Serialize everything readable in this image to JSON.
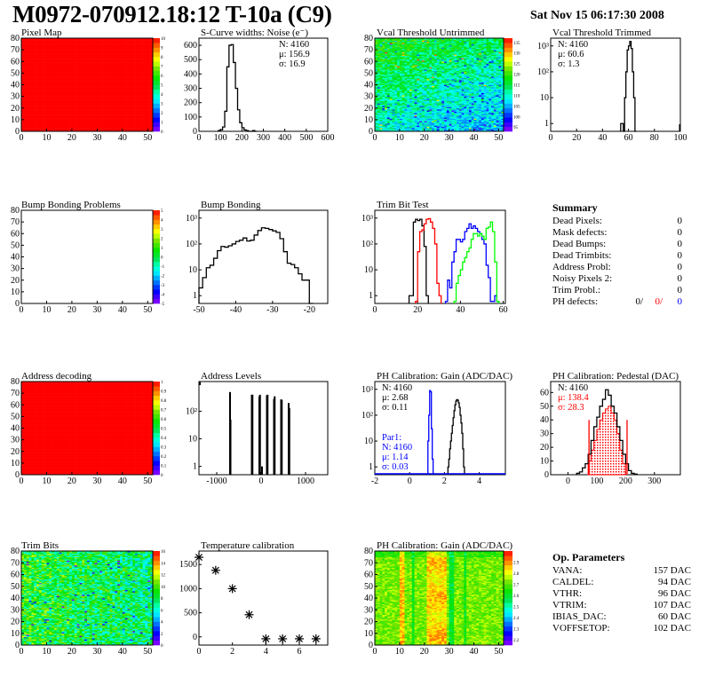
{
  "header": {
    "title": "M0972-070912.18:12 T-10a (C9)",
    "date": "Sat Nov 15 06:17:30 2008"
  },
  "summary": {
    "title": "Summary",
    "rows": [
      {
        "label": "Dead Pixels:",
        "value": "0"
      },
      {
        "label": "Mask defects:",
        "value": "0"
      },
      {
        "label": "Dead Bumps:",
        "value": "0"
      },
      {
        "label": "Dead Trimbits:",
        "value": "0"
      },
      {
        "label": "Address Probl:",
        "value": "0"
      },
      {
        "label": "Noisy Pixels 2:",
        "value": "0"
      },
      {
        "label": "Trim Probl.:",
        "value": "0"
      }
    ],
    "ph_defects": {
      "label": "PH defects:",
      "values": [
        {
          "text": "0/",
          "color": "#000000"
        },
        {
          "text": "0/",
          "color": "#ff0000"
        },
        {
          "text": "0",
          "color": "#0000ff"
        }
      ]
    }
  },
  "op_parameters": {
    "title": "Op. Parameters",
    "rows": [
      {
        "label": "VANA:",
        "value": "157 DAC"
      },
      {
        "label": "CALDEL:",
        "value": "94 DAC"
      },
      {
        "label": "VTHR:",
        "value": "96 DAC"
      },
      {
        "label": "VTRIM:",
        "value": "107 DAC"
      },
      {
        "label": "IBIAS_DAC:",
        "value": "60 DAC"
      },
      {
        "label": "VOFFSETOP:",
        "value": "102 DAC"
      }
    ]
  },
  "chart_data": [
    {
      "id": "pixel_map",
      "type": "heatmap",
      "title": "Pixel Map",
      "xlim": [
        0,
        52
      ],
      "ylim": [
        0,
        80
      ],
      "zlim": [
        0,
        10
      ],
      "xticks": [
        "0",
        "10",
        "20",
        "30",
        "40",
        "50"
      ],
      "yticks": [
        "0",
        "10",
        "20",
        "30",
        "40",
        "50",
        "60",
        "70",
        "80"
      ],
      "zticks": [
        "0",
        "1",
        "2",
        "3",
        "4",
        "5",
        "6",
        "7",
        "8",
        "9",
        "10"
      ],
      "fill": "uniform",
      "uniform_value": 10
    },
    {
      "id": "scurve",
      "type": "histogram",
      "title": "S-Curve widths: Noise (e⁻)",
      "xlim": [
        0,
        600
      ],
      "ylim": [
        0,
        650
      ],
      "log": false,
      "xticks": [
        "0",
        "100",
        "200",
        "300",
        "400",
        "500",
        "600"
      ],
      "yticks": [
        "0",
        "100",
        "200",
        "300",
        "400",
        "500",
        "600"
      ],
      "bin_width": 10,
      "series": [
        {
          "x0": 90,
          "color": "#000000",
          "values": [
            5,
            10,
            30,
            140,
            450,
            600,
            605,
            480,
            300,
            150,
            60,
            25,
            10,
            5,
            0,
            0,
            5,
            0
          ]
        }
      ],
      "stats": [
        {
          "text": "N: 4160",
          "color": "#000000"
        },
        {
          "text": "μ: 156.9",
          "color": "#000000"
        },
        {
          "text": "σ: 16.9",
          "color": "#000000"
        }
      ]
    },
    {
      "id": "vcal_untrimmed",
      "type": "heatmap",
      "title": "Vcal Threshold Untrimmed",
      "xlim": [
        0,
        52
      ],
      "ylim": [
        0,
        80
      ],
      "zlim": [
        93,
        137
      ],
      "xticks": [
        "0",
        "10",
        "20",
        "30",
        "40",
        "50"
      ],
      "yticks": [
        "0",
        "10",
        "20",
        "30",
        "40",
        "50",
        "60",
        "70",
        "80"
      ],
      "zticks": [
        "95",
        "100",
        "105",
        "110",
        "115",
        "120",
        "125",
        "130",
        "135"
      ],
      "fill": "vcal"
    },
    {
      "id": "vcal_trimmed",
      "type": "histogram",
      "title": "Vcal Threshold Trimmed",
      "xlim": [
        0,
        100
      ],
      "ylim": [
        0.5,
        2000
      ],
      "log": true,
      "xticks": [
        "0",
        "20",
        "40",
        "60",
        "80",
        "100"
      ],
      "yticks": [
        "1",
        "10",
        "10²",
        "10³"
      ],
      "bin_width": 1,
      "series": [
        {
          "x0": 54,
          "color": "#000000",
          "values": [
            1,
            1,
            0,
            10,
            100,
            700,
            1000,
            1500,
            800,
            100,
            10,
            0
          ]
        }
      ],
      "stats": [
        {
          "text": "N: 4160",
          "color": "#000000"
        },
        {
          "text": "μ: 60.6",
          "color": "#000000"
        },
        {
          "text": "σ:  1.3",
          "color": "#000000"
        }
      ]
    },
    {
      "id": "bump_problems",
      "type": "heatmap",
      "title": "Bump Bonding Problems",
      "xlim": [
        0,
        52
      ],
      "ylim": [
        0,
        80
      ],
      "zlim": [
        -5,
        5
      ],
      "xticks": [
        "0",
        "10",
        "20",
        "30",
        "40",
        "50"
      ],
      "yticks": [
        "0",
        "10",
        "20",
        "30",
        "40",
        "50",
        "60",
        "70",
        "80"
      ],
      "zticks": [
        "-5",
        "-4",
        "-3",
        "-2",
        "-1",
        "0",
        "1",
        "2",
        "3",
        "4",
        "5"
      ],
      "fill": "empty"
    },
    {
      "id": "bump_bonding",
      "type": "histogram",
      "title": "Bump Bonding",
      "xlim": [
        -50,
        -15
      ],
      "ylim": [
        0.5,
        2000
      ],
      "log": true,
      "xticks": [
        "-50",
        "-40",
        "-30",
        "-20"
      ],
      "yticks": [
        "1",
        "10",
        "10²",
        "10³"
      ],
      "bin_width": 1,
      "series": [
        {
          "x0": -50,
          "color": "#000000",
          "values": [
            2,
            5,
            12,
            15,
            28,
            55,
            80,
            75,
            85,
            100,
            125,
            140,
            170,
            130,
            140,
            220,
            330,
            420,
            400,
            360,
            320,
            280,
            160,
            50,
            18,
            16,
            12,
            7,
            4,
            4,
            0.5
          ]
        }
      ],
      "stats": []
    },
    {
      "id": "trim_bit_test",
      "type": "histogram",
      "title": "Trim Bit Test",
      "xlim": [
        0,
        61
      ],
      "ylim": [
        0.5,
        2000
      ],
      "log": true,
      "xticks": [
        "0",
        "20",
        "40",
        "60"
      ],
      "yticks": [
        "1",
        "10",
        "10²",
        "10³"
      ],
      "bin_width": 1,
      "series": [
        {
          "x0": 16,
          "color": "#000000",
          "values": [
            1,
            1,
            700,
            900,
            800,
            900,
            500,
            80,
            1
          ]
        },
        {
          "x0": 19,
          "color": "#ff0000",
          "values": [
            0.6,
            50,
            300,
            350,
            600,
            900,
            950,
            700,
            400,
            100,
            3,
            1
          ]
        },
        {
          "x0": 33,
          "color": "#0000ff",
          "values": [
            0.6,
            4,
            2,
            20,
            50,
            150,
            150,
            120,
            150,
            300,
            400,
            600,
            400,
            500,
            400,
            300,
            250,
            150,
            100,
            15,
            5,
            0.6,
            0.6,
            1,
            0.6
          ]
        },
        {
          "x0": 37,
          "color": "#00ff00",
          "values": [
            0.6,
            3,
            6,
            10,
            20,
            30,
            50,
            70,
            150,
            250,
            250,
            200,
            250,
            200,
            150,
            400,
            450,
            700,
            300,
            20,
            0.6
          ]
        }
      ],
      "stats": []
    },
    {
      "id": "summary",
      "type": "text"
    },
    {
      "id": "address_decoding",
      "type": "heatmap",
      "title": "Address decoding",
      "xlim": [
        0,
        52
      ],
      "ylim": [
        0,
        80
      ],
      "zlim": [
        0,
        1
      ],
      "xticks": [
        "0",
        "10",
        "20",
        "30",
        "40",
        "50"
      ],
      "yticks": [
        "0",
        "10",
        "20",
        "30",
        "40",
        "50",
        "60",
        "70",
        "80"
      ],
      "zticks": [
        "0",
        "0.1",
        "0.2",
        "0.3",
        "0.4",
        "0.5",
        "0.6",
        "0.7",
        "0.8",
        "0.9",
        "1"
      ],
      "fill": "uniform",
      "uniform_value": 1
    },
    {
      "id": "address_levels",
      "type": "spikes",
      "title": "Address Levels",
      "xlim": [
        -1400,
        1500
      ],
      "ylim": [
        0.5,
        1200
      ],
      "log": true,
      "xticks": [
        "-1000",
        "0",
        "1000"
      ],
      "yticks": [
        "1",
        "10",
        "10²"
      ],
      "points": [
        [
          -700,
          500
        ],
        [
          -690,
          50
        ],
        [
          -210,
          400
        ],
        [
          -195,
          400
        ],
        [
          -40,
          350
        ],
        [
          -25,
          400
        ],
        [
          20,
          1
        ],
        [
          130,
          380
        ],
        [
          145,
          400
        ],
        [
          290,
          280
        ],
        [
          305,
          350
        ],
        [
          450,
          270
        ],
        [
          465,
          260
        ],
        [
          620,
          200
        ],
        [
          635,
          130
        ]
      ],
      "stats": []
    },
    {
      "id": "ph_gain",
      "type": "histogram",
      "title": "PH Calibration: Gain (ADC/DAC)",
      "xlim": [
        -2,
        5.5
      ],
      "ylim": [
        0.5,
        2000
      ],
      "log": true,
      "xticks": [
        "-2",
        "0",
        "2",
        "4"
      ],
      "yticks": [
        "1",
        "10",
        "10²",
        "10³"
      ],
      "bin_width": 0.05,
      "series": [
        {
          "x0": 2.2,
          "color": "#000000",
          "values": [
            1,
            2,
            5,
            10,
            20,
            40,
            80,
            150,
            250,
            350,
            400,
            380,
            300,
            200,
            100,
            50,
            20,
            5,
            1
          ]
        },
        {
          "x0": 1.05,
          "color": "#0000ff",
          "values": [
            10,
            100,
            900,
            800,
            30,
            2
          ],
          "baseline": true
        }
      ],
      "stats": [
        {
          "text": "N: 4160",
          "color": "#000000"
        },
        {
          "text": "μ: 2.68",
          "color": "#000000"
        },
        {
          "text": "σ: 0.11",
          "color": "#000000"
        }
      ],
      "stats2": [
        {
          "text": "Par1:",
          "color": "#0000ff"
        },
        {
          "text": "N: 4160",
          "color": "#0000ff"
        },
        {
          "text": "μ: 1.14",
          "color": "#0000ff"
        },
        {
          "text": "σ: 0.03",
          "color": "#0000ff"
        }
      ]
    },
    {
      "id": "ph_pedestal",
      "type": "histogram",
      "title": "PH Calibration: Pedestal (DAC)",
      "xlim": [
        -60,
        390
      ],
      "ylim": [
        0,
        68
      ],
      "log": false,
      "xticks": [
        "0",
        "100",
        "200",
        "300"
      ],
      "yticks": [
        "0",
        "10",
        "20",
        "30",
        "40",
        "50",
        "60"
      ],
      "bin_width": 10,
      "series": [
        {
          "x0": 70,
          "color": "#ff0000",
          "filled": true,
          "values": [
            10,
            18,
            25,
            33,
            40,
            45,
            48,
            50,
            45,
            40,
            30,
            18,
            8
          ]
        },
        {
          "x0": 30,
          "color": "#000000",
          "values": [
            1,
            2,
            5,
            8,
            15,
            25,
            35,
            42,
            50,
            55,
            62,
            58,
            50,
            45,
            35,
            25,
            15,
            8,
            3,
            1,
            0.5
          ]
        }
      ],
      "markers": [
        {
          "x": 73,
          "y": 40,
          "color": "#ff0000"
        },
        {
          "x": 205,
          "y": 40,
          "color": "#ff0000"
        }
      ],
      "stats": [
        {
          "text": "N: 4160",
          "color": "#000000"
        },
        {
          "text": "μ: 138.4",
          "color": "#ff0000"
        },
        {
          "text": "σ: 28.3",
          "color": "#ff0000"
        }
      ]
    },
    {
      "id": "trim_bits",
      "type": "heatmap",
      "title": "Trim Bits",
      "xlim": [
        0,
        52
      ],
      "ylim": [
        0,
        80
      ],
      "zlim": [
        0,
        16
      ],
      "xticks": [
        "0",
        "10",
        "20",
        "30",
        "40",
        "50"
      ],
      "yticks": [
        "0",
        "10",
        "20",
        "30",
        "40",
        "50",
        "60",
        "70",
        "80"
      ],
      "zticks": [
        "0",
        "2",
        "4",
        "6",
        "8",
        "10",
        "12",
        "14",
        "16"
      ],
      "fill": "trim"
    },
    {
      "id": "temperature",
      "type": "scatter",
      "title": "Temperature calibration",
      "xlim": [
        0,
        7.7
      ],
      "ylim": [
        -170,
        1780
      ],
      "log": false,
      "xticks": [
        "0",
        "2",
        "4",
        "6"
      ],
      "yticks": [
        "0",
        "500",
        "1000",
        "1500"
      ],
      "points": [
        [
          0,
          1650
        ],
        [
          1,
          1380
        ],
        [
          2,
          1000
        ],
        [
          3,
          460
        ],
        [
          4,
          -40
        ],
        [
          5,
          -40
        ],
        [
          6,
          -40
        ],
        [
          7,
          -40
        ]
      ]
    },
    {
      "id": "ph_gain_map",
      "type": "heatmap",
      "title": "PH Calibration: Gain (ADC/DAC)",
      "xlim": [
        0,
        52
      ],
      "ylim": [
        0,
        80
      ],
      "zlim": [
        2.15,
        3.0
      ],
      "xticks": [
        "0",
        "10",
        "20",
        "30",
        "40",
        "50"
      ],
      "yticks": [
        "0",
        "10",
        "20",
        "30",
        "40",
        "50",
        "60",
        "70",
        "80"
      ],
      "zticks": [
        "2.2",
        "2.3",
        "2.4",
        "2.5",
        "2.6",
        "2.7",
        "2.8",
        "2.9"
      ],
      "fill": "phgain"
    },
    {
      "id": "op_parameters",
      "type": "text"
    }
  ]
}
